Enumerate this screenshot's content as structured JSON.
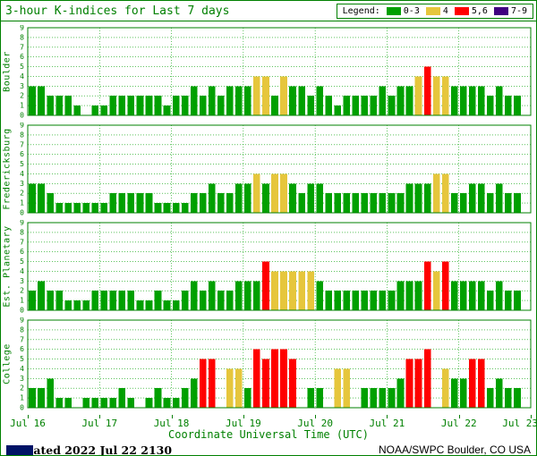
{
  "header": {
    "title": "3-hour K-indices for Last 7 days",
    "legend_label": "Legend:",
    "legend_items": [
      {
        "label": "0-3",
        "color": "#00A000"
      },
      {
        "label": "4",
        "color": "#E6C63C"
      },
      {
        "label": "5,6",
        "color": "#FF0000"
      },
      {
        "label": "7-9",
        "color": "#400080"
      }
    ]
  },
  "footer": {
    "updated": "Updated 2022 Jul 22 2130",
    "attribution": "NOAA/SWPC Boulder, CO USA"
  },
  "chart_data": {
    "type": "bar",
    "title": "3-hour K-indices for Last 7 days",
    "xlabel": "Coordinate Universal Time (UTC)",
    "x_tick_labels": [
      "Jul 16",
      "Jul 17",
      "Jul 18",
      "Jul 19",
      "Jul 20",
      "Jul 21",
      "Jul 22",
      "Jul 23"
    ],
    "bars_per_day": 8,
    "hours_per_bar": 3,
    "ylim": [
      0,
      9
    ],
    "y_ticks": [
      0,
      1,
      2,
      3,
      4,
      5,
      6,
      7,
      8,
      9
    ],
    "grid": true,
    "legend_position": "top-right",
    "colors": {
      "k0_3": "#00A000",
      "k4": "#E6C63C",
      "k5_6": "#FF0000",
      "k7_9": "#400080",
      "frame": "#008000"
    },
    "panels": [
      {
        "station": "Boulder",
        "values": [
          3,
          3,
          2,
          2,
          2,
          1,
          0,
          1,
          1,
          2,
          2,
          2,
          2,
          2,
          2,
          1,
          2,
          2,
          3,
          2,
          3,
          2,
          3,
          3,
          3,
          4,
          4,
          2,
          4,
          3,
          3,
          2,
          3,
          2,
          1,
          2,
          2,
          2,
          2,
          3,
          2,
          3,
          3,
          4,
          5,
          4,
          4,
          3,
          3,
          3,
          3,
          2,
          3,
          2,
          2
        ]
      },
      {
        "station": "Fredericksburg",
        "values": [
          3,
          3,
          2,
          1,
          1,
          1,
          1,
          1,
          1,
          2,
          2,
          2,
          2,
          2,
          1,
          1,
          1,
          1,
          2,
          2,
          3,
          2,
          2,
          3,
          3,
          4,
          3,
          4,
          4,
          3,
          2,
          3,
          3,
          2,
          2,
          2,
          2,
          2,
          2,
          2,
          2,
          2,
          3,
          3,
          3,
          4,
          4,
          2,
          2,
          3,
          3,
          2,
          3,
          2,
          2
        ]
      },
      {
        "station": "Est. Planetary",
        "values": [
          2,
          3,
          2,
          2,
          1,
          1,
          1,
          2,
          2,
          2,
          2,
          2,
          1,
          1,
          2,
          1,
          1,
          2,
          3,
          2,
          3,
          2,
          2,
          3,
          3,
          3,
          5,
          4,
          4,
          4,
          4,
          4,
          3,
          2,
          2,
          2,
          2,
          2,
          2,
          2,
          2,
          3,
          3,
          3,
          5,
          4,
          5,
          3,
          3,
          3,
          3,
          2,
          3,
          2,
          2
        ]
      },
      {
        "station": "College",
        "values": [
          2,
          2,
          3,
          1,
          1,
          0,
          1,
          1,
          1,
          1,
          2,
          1,
          0,
          1,
          2,
          1,
          1,
          2,
          3,
          5,
          5,
          0,
          4,
          4,
          2,
          6,
          5,
          6,
          6,
          5,
          0,
          2,
          2,
          0,
          4,
          4,
          0,
          2,
          2,
          2,
          2,
          3,
          5,
          5,
          6,
          0,
          4,
          3,
          3,
          5,
          5,
          2,
          3,
          2,
          2
        ]
      }
    ]
  }
}
